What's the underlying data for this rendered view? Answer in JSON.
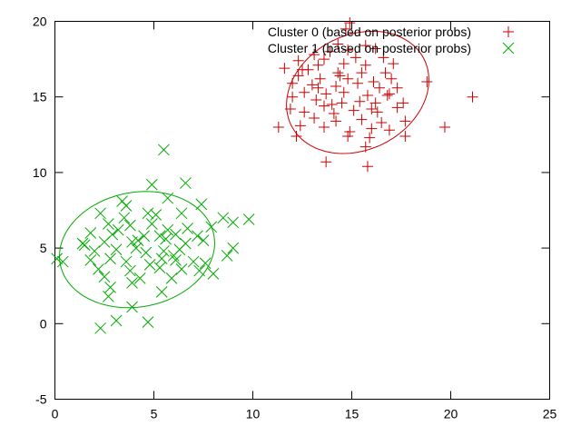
{
  "chart_data": {
    "type": "scatter",
    "title": "",
    "xlabel": "",
    "ylabel": "",
    "xlim": [
      0,
      25
    ],
    "ylim": [
      -5,
      20
    ],
    "xticks": [
      0,
      5,
      10,
      15,
      20,
      25
    ],
    "yticks": [
      -5,
      0,
      5,
      10,
      15,
      20
    ],
    "grid": false,
    "legend_position": "top-right",
    "series": [
      {
        "name": "Cluster 0 (based on posterior probs)",
        "marker": "plus",
        "color": "#cc0000",
        "ellipse": {
          "center": [
            15.3,
            15.3
          ],
          "rx": 3.35,
          "ry": 4.25,
          "angle_deg": -30
        },
        "points": [
          [
            14.9,
            19.9
          ],
          [
            14.7,
            19.5
          ],
          [
            15.7,
            18.4
          ],
          [
            14.3,
            18.5
          ],
          [
            14.8,
            18.1
          ],
          [
            16.2,
            18.2
          ],
          [
            13.9,
            18.0
          ],
          [
            13.1,
            17.8
          ],
          [
            13.6,
            17.5
          ],
          [
            15.2,
            17.6
          ],
          [
            16.6,
            17.6
          ],
          [
            12.3,
            17.4
          ],
          [
            13.3,
            17.1
          ],
          [
            14.6,
            17.2
          ],
          [
            15.7,
            17.1
          ],
          [
            17.1,
            17.2
          ],
          [
            11.6,
            16.9
          ],
          [
            12.5,
            16.8
          ],
          [
            12.8,
            16.8
          ],
          [
            14.3,
            16.6
          ],
          [
            15.5,
            16.6
          ],
          [
            16.7,
            16.6
          ],
          [
            18.8,
            16.0
          ],
          [
            12.3,
            16.4
          ],
          [
            13.4,
            16.2
          ],
          [
            14.8,
            16.2
          ],
          [
            16.1,
            16.0
          ],
          [
            17.0,
            16.2
          ],
          [
            12.0,
            15.9
          ],
          [
            13.0,
            15.8
          ],
          [
            14.2,
            15.7
          ],
          [
            15.3,
            15.9
          ],
          [
            16.4,
            15.6
          ],
          [
            17.3,
            15.6
          ],
          [
            12.6,
            15.3
          ],
          [
            13.7,
            15.2
          ],
          [
            14.6,
            15.3
          ],
          [
            15.8,
            15.1
          ],
          [
            16.9,
            15.2
          ],
          [
            12.0,
            15.0
          ],
          [
            13.2,
            14.8
          ],
          [
            14.5,
            14.6
          ],
          [
            15.4,
            14.7
          ],
          [
            16.2,
            14.6
          ],
          [
            17.6,
            14.6
          ],
          [
            21.1,
            15.0
          ],
          [
            11.9,
            14.2
          ],
          [
            12.6,
            14.0
          ],
          [
            13.6,
            14.4
          ],
          [
            14.1,
            13.9
          ],
          [
            15.1,
            14.1
          ],
          [
            16.3,
            14.0
          ],
          [
            17.3,
            14.3
          ],
          [
            13.1,
            13.6
          ],
          [
            14.2,
            13.4
          ],
          [
            15.5,
            13.5
          ],
          [
            16.5,
            13.3
          ],
          [
            17.7,
            13.4
          ],
          [
            11.3,
            13.0
          ],
          [
            12.4,
            13.1
          ],
          [
            13.6,
            13.0
          ],
          [
            14.9,
            12.7
          ],
          [
            16.0,
            12.9
          ],
          [
            16.9,
            12.8
          ],
          [
            19.7,
            13.0
          ],
          [
            12.2,
            12.4
          ],
          [
            14.8,
            12.4
          ],
          [
            15.9,
            12.3
          ],
          [
            17.7,
            12.4
          ],
          [
            15.7,
            11.7
          ],
          [
            13.7,
            10.7
          ],
          [
            15.8,
            10.4
          ],
          [
            16.8,
            15.1
          ],
          [
            14.4,
            16.4
          ],
          [
            13.3,
            15.6
          ],
          [
            16.0,
            14.2
          ],
          [
            14.0,
            14.5
          ]
        ]
      },
      {
        "name": "Cluster 1 (based on posterior probs)",
        "marker": "x",
        "color": "#00aa00",
        "ellipse": {
          "center": [
            4.15,
            4.9
          ],
          "rx": 3.65,
          "ry": 4.1,
          "angle_deg": -50
        },
        "points": [
          [
            5.5,
            11.5
          ],
          [
            6.6,
            9.3
          ],
          [
            4.9,
            9.2
          ],
          [
            3.4,
            8.1
          ],
          [
            3.6,
            7.8
          ],
          [
            5.7,
            8.3
          ],
          [
            7.4,
            7.9
          ],
          [
            2.3,
            7.3
          ],
          [
            3.5,
            7.0
          ],
          [
            4.7,
            7.3
          ],
          [
            5.1,
            7.2
          ],
          [
            6.4,
            7.3
          ],
          [
            8.5,
            7.0
          ],
          [
            9.0,
            6.7
          ],
          [
            9.8,
            6.9
          ],
          [
            2.7,
            6.6
          ],
          [
            3.8,
            6.5
          ],
          [
            4.9,
            6.6
          ],
          [
            5.7,
            6.2
          ],
          [
            6.7,
            6.3
          ],
          [
            7.9,
            6.4
          ],
          [
            1.8,
            6.0
          ],
          [
            2.9,
            5.9
          ],
          [
            4.5,
            5.8
          ],
          [
            5.3,
            5.8
          ],
          [
            6.1,
            5.9
          ],
          [
            7.2,
            5.8
          ],
          [
            1.4,
            5.3
          ],
          [
            2.5,
            5.4
          ],
          [
            3.9,
            5.4
          ],
          [
            4.2,
            5.5
          ],
          [
            5.6,
            5.6
          ],
          [
            6.6,
            5.3
          ],
          [
            7.5,
            5.5
          ],
          [
            9.0,
            5.0
          ],
          [
            2.0,
            4.8
          ],
          [
            3.1,
            4.9
          ],
          [
            4.6,
            4.7
          ],
          [
            5.5,
            4.8
          ],
          [
            6.3,
            4.9
          ],
          [
            8.7,
            4.5
          ],
          [
            0.1,
            4.3
          ],
          [
            0.4,
            4.1
          ],
          [
            1.8,
            4.2
          ],
          [
            2.8,
            4.3
          ],
          [
            3.6,
            4.1
          ],
          [
            5.4,
            4.3
          ],
          [
            6.1,
            4.2
          ],
          [
            7.0,
            4.1
          ],
          [
            7.6,
            4.0
          ],
          [
            2.2,
            3.6
          ],
          [
            3.8,
            3.5
          ],
          [
            5.3,
            3.7
          ],
          [
            6.4,
            3.6
          ],
          [
            7.3,
            3.5
          ],
          [
            2.5,
            3.1
          ],
          [
            4.3,
            3.0
          ],
          [
            5.9,
            3.0
          ],
          [
            8.0,
            3.3
          ],
          [
            2.8,
            2.4
          ],
          [
            3.9,
            2.7
          ],
          [
            5.4,
            2.1
          ],
          [
            2.7,
            1.8
          ],
          [
            3.9,
            1.1
          ],
          [
            4.7,
            0.1
          ],
          [
            3.1,
            0.2
          ],
          [
            2.3,
            -0.3
          ],
          [
            4.1,
            5.0
          ],
          [
            6.0,
            4.5
          ],
          [
            3.2,
            6.2
          ],
          [
            4.8,
            3.9
          ],
          [
            1.5,
            5.2
          ]
        ]
      }
    ]
  }
}
